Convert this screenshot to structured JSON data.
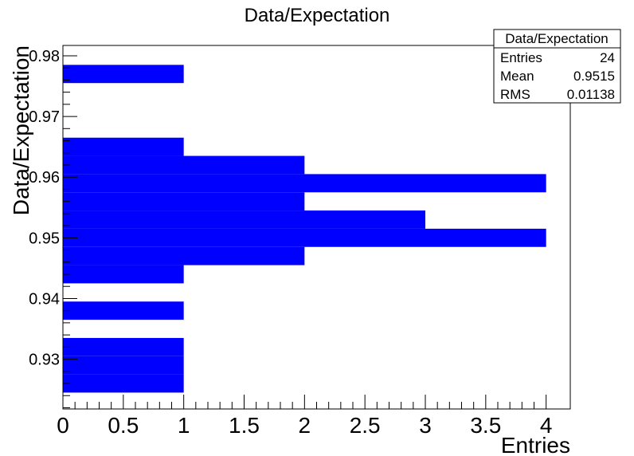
{
  "chart_data": {
    "type": "bar",
    "orientation": "horizontal",
    "title": "Data/Expectation",
    "xlabel": "Entries",
    "ylabel": "Data/Expectation",
    "xlim": [
      0,
      4.2
    ],
    "ylim": [
      0.9218,
      0.9817
    ],
    "bin_width": 0.003,
    "xticks": [
      {
        "value": 0,
        "label": "0"
      },
      {
        "value": 0.5,
        "label": "0.5"
      },
      {
        "value": 1,
        "label": "1"
      },
      {
        "value": 1.5,
        "label": "1.5"
      },
      {
        "value": 2,
        "label": "2"
      },
      {
        "value": 2.5,
        "label": "2.5"
      },
      {
        "value": 3,
        "label": "3"
      },
      {
        "value": 3.5,
        "label": "3.5"
      },
      {
        "value": 4,
        "label": "4"
      }
    ],
    "yticks": [
      {
        "value": 0.93,
        "label": "0.93"
      },
      {
        "value": 0.94,
        "label": "0.94"
      },
      {
        "value": 0.95,
        "label": "0.95"
      },
      {
        "value": 0.96,
        "label": "0.96"
      },
      {
        "value": 0.97,
        "label": "0.97"
      },
      {
        "value": 0.98,
        "label": "0.98"
      }
    ],
    "bins": [
      {
        "low": 0.9245,
        "high": 0.9275,
        "count": 1
      },
      {
        "low": 0.9275,
        "high": 0.9305,
        "count": 1
      },
      {
        "low": 0.9305,
        "high": 0.9335,
        "count": 1
      },
      {
        "low": 0.9365,
        "high": 0.9395,
        "count": 1
      },
      {
        "low": 0.9425,
        "high": 0.9455,
        "count": 1
      },
      {
        "low": 0.9455,
        "high": 0.9485,
        "count": 2
      },
      {
        "low": 0.9485,
        "high": 0.9515,
        "count": 4
      },
      {
        "low": 0.9515,
        "high": 0.9545,
        "count": 3
      },
      {
        "low": 0.9545,
        "high": 0.9575,
        "count": 2
      },
      {
        "low": 0.9575,
        "high": 0.9605,
        "count": 4
      },
      {
        "low": 0.9605,
        "high": 0.9635,
        "count": 2
      },
      {
        "low": 0.9635,
        "high": 0.9665,
        "count": 1
      },
      {
        "low": 0.9755,
        "high": 0.9785,
        "count": 1
      }
    ],
    "bar_color": "#0000ff",
    "stats_box": {
      "title": "Data/Expectation",
      "rows": [
        {
          "label": "Entries",
          "value": "24"
        },
        {
          "label": "Mean",
          "value": "0.9515"
        },
        {
          "label": "RMS",
          "value": "0.01138"
        }
      ]
    }
  }
}
